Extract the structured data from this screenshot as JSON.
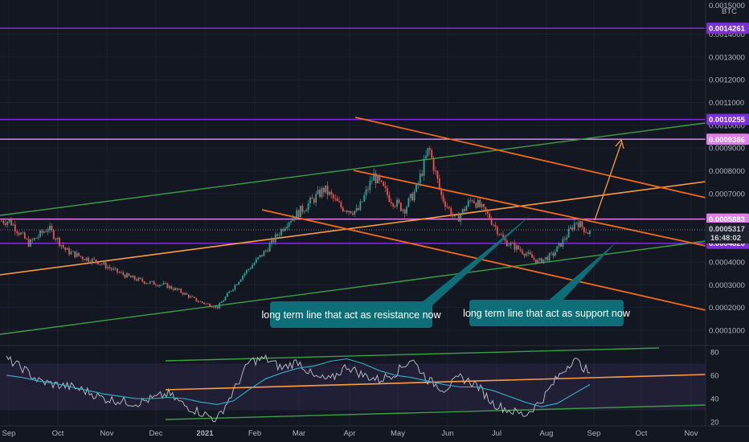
{
  "chart_data": {
    "type": "candlestick",
    "currency_label": "BTC",
    "x_ticks": [
      "Sep",
      "Oct",
      "Nov",
      "Dec",
      "2021",
      "Feb",
      "Mar",
      "Apr",
      "May",
      "Jun",
      "Jul",
      "Aug",
      "Sep",
      "Oct",
      "Nov"
    ],
    "y_ticks": [
      "0.0014000",
      "0.0013000",
      "0.0012000",
      "0.0011000",
      "0.0010000",
      "0.0009000",
      "0.0008000",
      "0.0007000",
      "0.0004000",
      "0.0003000",
      "0.0002000",
      "0.0001000"
    ],
    "y_top_partial": "0.0015000",
    "ylim": [
      4e-05,
      0.00155
    ],
    "price_tags": [
      {
        "label": "0.0014261",
        "value": 0.0014261,
        "color": "#7b2fd6"
      },
      {
        "label": "0.0010255",
        "value": 0.0010255,
        "color": "#7b2fd6"
      },
      {
        "label": "0.0009386",
        "value": 0.0009386,
        "color": "#e07fe8"
      },
      {
        "label": "0.0005883",
        "value": 0.0005883,
        "color": "#e07fe8"
      },
      {
        "label": "0.0004820",
        "value": 0.000482,
        "color": "#7b2fd6"
      }
    ],
    "last_price": {
      "label": "0.0005317",
      "time": "16:48:02"
    },
    "annotations": [
      "long term line that act as resistance now",
      "long term line that act as support now"
    ],
    "price_path": [
      [
        "Sep",
        0.00058
      ],
      [
        "Sep",
        0.00048
      ],
      [
        "Sep",
        0.00055
      ],
      [
        "Oct",
        0.00045
      ],
      [
        "Oct",
        0.00042
      ],
      [
        "Oct",
        0.0004
      ],
      [
        "Nov",
        0.00036
      ],
      [
        "Nov",
        0.00033
      ],
      [
        "Nov",
        0.00031
      ],
      [
        "Dec",
        0.0003
      ],
      [
        "Dec",
        0.00027
      ],
      [
        "Dec",
        0.00023
      ],
      [
        "2021",
        0.0002
      ],
      [
        "2021",
        0.00034
      ],
      [
        "Feb",
        0.00045
      ],
      [
        "Feb",
        0.00058
      ],
      [
        "Mar",
        0.00065
      ],
      [
        "Mar",
        0.00072
      ],
      [
        "Mar",
        0.00064
      ],
      [
        "Apr",
        0.00062
      ],
      [
        "Apr",
        0.00078
      ],
      [
        "Apr",
        0.00068
      ],
      [
        "May",
        0.00063
      ],
      [
        "May",
        0.00072
      ],
      [
        "May",
        0.0009
      ],
      [
        "May",
        0.00069
      ],
      [
        "Jun",
        0.00058
      ],
      [
        "Jun",
        0.00068
      ],
      [
        "Jun",
        0.0006
      ],
      [
        "Jul",
        0.00049
      ],
      [
        "Jul",
        0.00045
      ],
      [
        "Jul",
        0.0004
      ],
      [
        "Aug",
        0.00043
      ],
      [
        "Aug",
        0.0005
      ],
      [
        "Aug",
        0.00058
      ],
      [
        "Aug",
        0.00053
      ]
    ],
    "rsi": {
      "y_ticks": [
        80,
        60,
        40,
        20
      ],
      "ylim": [
        18,
        84
      ],
      "band": [
        30,
        70
      ],
      "values": [
        74,
        66,
        55,
        52,
        50,
        46,
        40,
        38,
        36,
        40,
        44,
        34,
        28,
        22,
        46,
        72,
        74,
        66,
        72,
        58,
        56,
        68,
        60,
        56,
        62,
        74,
        56,
        48,
        58,
        52,
        36,
        30,
        26,
        38,
        58,
        74,
        62
      ],
      "ma_values": [
        60,
        58,
        55,
        53,
        50,
        47,
        44,
        42,
        40,
        40,
        41,
        40,
        37,
        35,
        38,
        48,
        57,
        62,
        66,
        68,
        72,
        74,
        70,
        64,
        60,
        58,
        55,
        52,
        50,
        50,
        47,
        42,
        37,
        33,
        36,
        44,
        52
      ]
    },
    "grid": true
  }
}
